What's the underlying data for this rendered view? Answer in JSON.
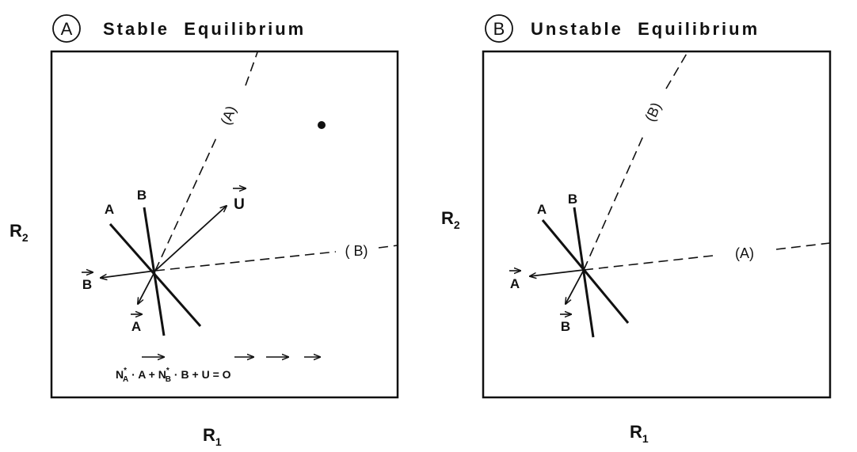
{
  "panel_a": {
    "badge": "A",
    "title": "Stable  Equilibrium",
    "y_axis": "R",
    "y_axis_sub": "2",
    "x_axis": "R",
    "x_axis_sub": "1",
    "iso_a_label": "A",
    "iso_b_label": "B",
    "vec_u_label": "U",
    "vec_b_label": "B",
    "vec_a_label": "A",
    "supply_a_label": "(A)",
    "supply_b_label": "( B)",
    "equation": {
      "na": "N",
      "na_sup": "*",
      "na_sub": "A",
      "dot1": " · ",
      "va": "A",
      "plus1": " + ",
      "nb": "N",
      "nb_sup": "*",
      "nb_sub": "B",
      "dot2": " · ",
      "vb": "B",
      "plus2": " + ",
      "vu": "U",
      "eq": " = ",
      "vo": "O"
    }
  },
  "panel_b": {
    "badge": "B",
    "title": "Unstable  Equilibrium",
    "y_axis": "R",
    "y_axis_sub": "2",
    "x_axis": "R",
    "x_axis_sub": "1",
    "iso_a_label": "A",
    "iso_b_label": "B",
    "vec_a_label": "A",
    "vec_b_label": "B",
    "supply_b_label": "(B)",
    "supply_a_label": "(A)"
  },
  "colors": {
    "ink": "#111111",
    "background": "#ffffff"
  }
}
